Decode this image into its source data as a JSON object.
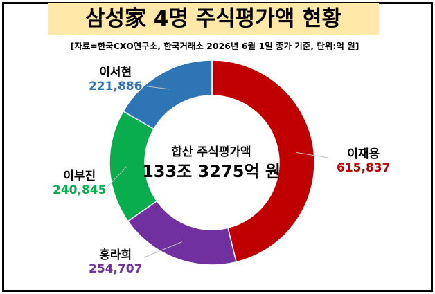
{
  "title": "삼성家 4명 주식평가액 현황",
  "source": "[자료=한국CXO연구소, 한국거래소 2026년 6월 1일 종가 기준, 단위:억 원]",
  "center": {
    "label": "합산 주식평가액",
    "total": "133조 3275억 원"
  },
  "colors": {
    "title_bg": "#ffe8a8",
    "이재용": "#c00000",
    "홍라희": "#7030a0",
    "이부진": "#0aad4d",
    "이서현": "#2e75b6"
  },
  "chart_data": {
    "type": "pie",
    "style": "donut",
    "title": "삼성家 4명 주식평가액 현황",
    "unit": "억 원",
    "slices": [
      {
        "name": "이재용",
        "value": 615837,
        "label": "615,837",
        "color": "#c00000"
      },
      {
        "name": "홍라희",
        "value": 254707,
        "label": "254,707",
        "color": "#7030a0"
      },
      {
        "name": "이부진",
        "value": 240845,
        "label": "240,845",
        "color": "#0aad4d"
      },
      {
        "name": "이서현",
        "value": 221886,
        "label": "221,886",
        "color": "#2e75b6"
      }
    ],
    "start_angle": "12 o'clock",
    "direction": "clockwise",
    "legend": "none"
  }
}
